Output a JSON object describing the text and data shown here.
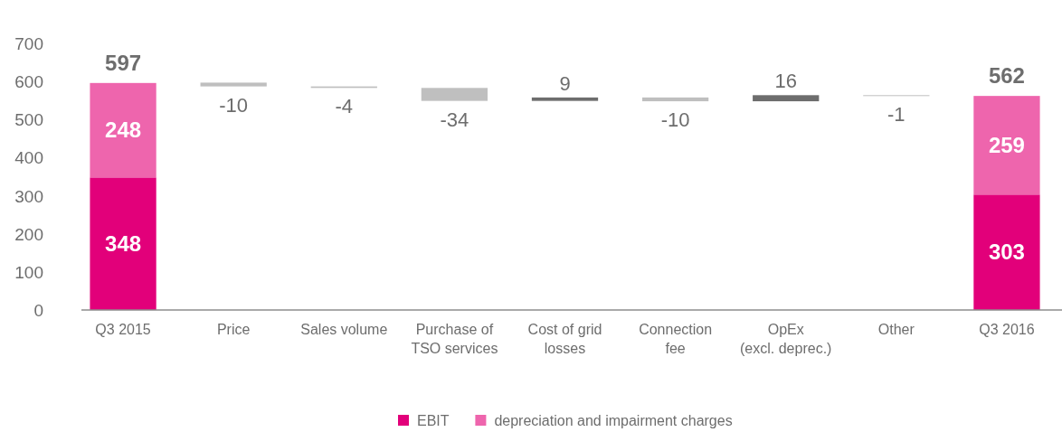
{
  "chart_data": {
    "type": "bar",
    "stacked": true,
    "categories": [
      "Q3 2015",
      "Price",
      "Sales volume",
      "Purchase of\nTSO services",
      "Cost of grid\nlosses",
      "Connection\nfee",
      "OpEx\n(excl. deprec.)",
      "Other",
      "Q3 2016"
    ],
    "series": [
      {
        "name": "EBIT",
        "color": "#e2007a",
        "values": [
          348,
          null,
          null,
          null,
          null,
          null,
          null,
          null,
          303
        ]
      },
      {
        "name": "depreciation and impairment charges",
        "color": "#ee65ad",
        "values": [
          248,
          null,
          null,
          null,
          null,
          null,
          null,
          null,
          259
        ]
      },
      {
        "colors": [
          null,
          "#bfbfbf",
          "#bfbfbf",
          "#bfbfbf",
          "#6d6d6d",
          "#bfbfbf",
          "#6d6d6d",
          "#bfbfbf",
          null
        ],
        "values": [
          null,
          -10,
          -4,
          -34,
          9,
          -10,
          16,
          -1,
          null
        ],
        "base": [
          null,
          597,
          587,
          583,
          549,
          558,
          548,
          564,
          null
        ]
      }
    ],
    "totals": [
      "597",
      null,
      null,
      null,
      null,
      null,
      null,
      null,
      "562"
    ],
    "data_labels": true,
    "ylim": [
      0,
      700
    ],
    "yticks": [
      0,
      100,
      200,
      300,
      400,
      500,
      600,
      700
    ],
    "grid": false,
    "legend": "bottom"
  }
}
